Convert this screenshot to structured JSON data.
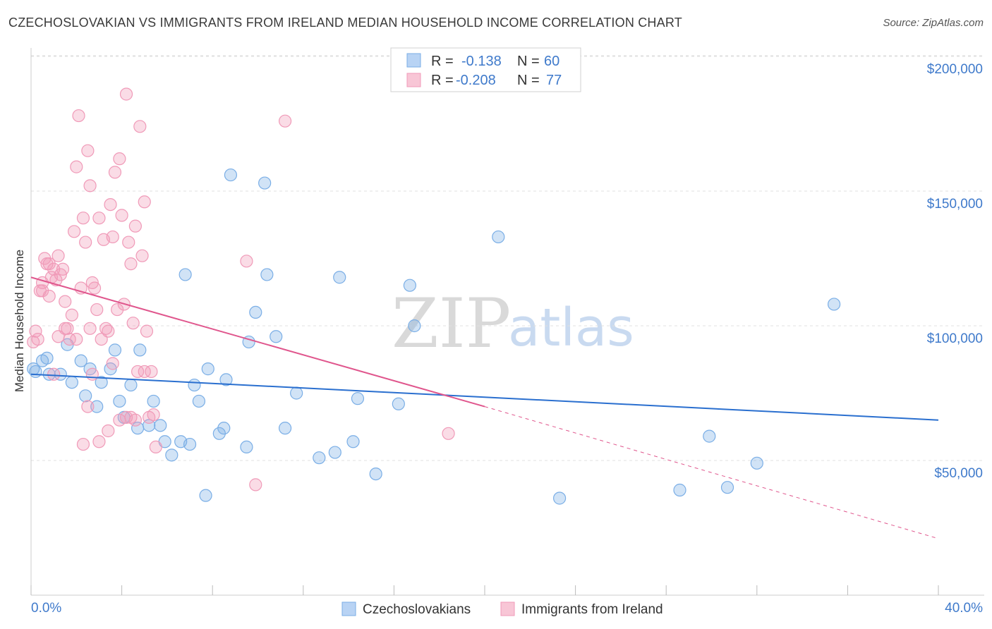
{
  "chart_data": {
    "type": "scatter",
    "title": "CZECHOSLOVAKIAN VS IMMIGRANTS FROM IRELAND MEDIAN HOUSEHOLD INCOME CORRELATION CHART",
    "source": "Source: ZipAtlas.com",
    "ylabel": "Median Household Income",
    "xlim": [
      0,
      40
    ],
    "ylim": [
      0,
      210000
    ],
    "x_tick_labels": [
      "0.0%",
      "40.0%"
    ],
    "y_ticks": [
      {
        "value": 50000,
        "label": "$50,000"
      },
      {
        "value": 100000,
        "label": "$100,000"
      },
      {
        "value": 150000,
        "label": "$150,000"
      },
      {
        "value": 200000,
        "label": "$200,000"
      }
    ],
    "watermark": {
      "zip": "ZIP",
      "atlas": "atlas"
    },
    "legend": {
      "r_label": "R =",
      "n_label": "N =",
      "rows": [
        {
          "r": "-0.138",
          "n": "60"
        },
        {
          "r": "-0.208",
          "n": "77"
        }
      ]
    },
    "series": [
      {
        "name": "Czechoslovakians",
        "color": "#7aaee6",
        "line_color": "#2a6fcf",
        "trend": {
          "x0": 0,
          "y0": 82000,
          "x1": 40,
          "y1": 65000
        },
        "points": [
          [
            0.2,
            83000
          ],
          [
            0.5,
            87000
          ],
          [
            0.7,
            88000
          ],
          [
            0.8,
            82000
          ],
          [
            1.3,
            82000
          ],
          [
            1.6,
            93000
          ],
          [
            1.8,
            79000
          ],
          [
            2.2,
            87000
          ],
          [
            2.4,
            74000
          ],
          [
            2.6,
            84000
          ],
          [
            2.9,
            70000
          ],
          [
            3.1,
            79000
          ],
          [
            3.5,
            84000
          ],
          [
            3.7,
            91000
          ],
          [
            3.9,
            72000
          ],
          [
            4.1,
            66000
          ],
          [
            4.4,
            78000
          ],
          [
            4.7,
            62000
          ],
          [
            4.8,
            91000
          ],
          [
            5.2,
            63000
          ],
          [
            5.4,
            72000
          ],
          [
            5.7,
            63000
          ],
          [
            5.9,
            57000
          ],
          [
            6.2,
            52000
          ],
          [
            6.6,
            57000
          ],
          [
            6.8,
            119000
          ],
          [
            7.0,
            56000
          ],
          [
            7.2,
            78000
          ],
          [
            7.4,
            72000
          ],
          [
            7.7,
            37000
          ],
          [
            7.8,
            84000
          ],
          [
            8.3,
            60000
          ],
          [
            8.5,
            62000
          ],
          [
            8.6,
            80000
          ],
          [
            8.8,
            156000
          ],
          [
            9.5,
            55000
          ],
          [
            9.6,
            94000
          ],
          [
            9.9,
            105000
          ],
          [
            10.3,
            153000
          ],
          [
            10.4,
            119000
          ],
          [
            10.8,
            96000
          ],
          [
            11.2,
            62000
          ],
          [
            11.7,
            75000
          ],
          [
            12.7,
            51000
          ],
          [
            13.4,
            53000
          ],
          [
            13.6,
            118000
          ],
          [
            14.2,
            57000
          ],
          [
            14.4,
            73000
          ],
          [
            15.2,
            45000
          ],
          [
            16.2,
            71000
          ],
          [
            16.7,
            115000
          ],
          [
            16.9,
            100000
          ],
          [
            20.6,
            133000
          ],
          [
            23.3,
            36000
          ],
          [
            28.6,
            39000
          ],
          [
            29.9,
            59000
          ],
          [
            30.7,
            40000
          ],
          [
            32.0,
            49000
          ],
          [
            35.4,
            108000
          ],
          [
            0.1,
            84000
          ]
        ]
      },
      {
        "name": "Immigrants from Ireland",
        "color": "#f09ab8",
        "line_color": "#e0568d",
        "trend": {
          "x0": 0,
          "y0": 118000,
          "x1": 20,
          "y1": 70000
        },
        "trend_dashed": {
          "x0": 20,
          "y0": 70000,
          "x1": 40,
          "y1": 21000
        },
        "points": [
          [
            0.2,
            98000
          ],
          [
            0.3,
            95000
          ],
          [
            0.4,
            113000
          ],
          [
            0.5,
            116000
          ],
          [
            0.6,
            125000
          ],
          [
            0.7,
            123000
          ],
          [
            0.8,
            111000
          ],
          [
            0.9,
            118000
          ],
          [
            1.0,
            121000
          ],
          [
            1.1,
            117000
          ],
          [
            1.2,
            126000
          ],
          [
            1.3,
            119000
          ],
          [
            1.4,
            121000
          ],
          [
            1.5,
            109000
          ],
          [
            1.6,
            99000
          ],
          [
            1.7,
            95000
          ],
          [
            1.8,
            104000
          ],
          [
            1.9,
            135000
          ],
          [
            2.0,
            159000
          ],
          [
            2.1,
            178000
          ],
          [
            2.2,
            114000
          ],
          [
            2.3,
            140000
          ],
          [
            2.4,
            131000
          ],
          [
            2.5,
            165000
          ],
          [
            2.6,
            152000
          ],
          [
            2.7,
            116000
          ],
          [
            2.8,
            114000
          ],
          [
            2.9,
            106000
          ],
          [
            3.0,
            140000
          ],
          [
            3.1,
            95000
          ],
          [
            3.2,
            132000
          ],
          [
            3.3,
            99000
          ],
          [
            3.4,
            98000
          ],
          [
            3.5,
            145000
          ],
          [
            3.6,
            133000
          ],
          [
            3.7,
            157000
          ],
          [
            3.8,
            106000
          ],
          [
            3.9,
            162000
          ],
          [
            4.0,
            141000
          ],
          [
            4.1,
            108000
          ],
          [
            4.2,
            186000
          ],
          [
            4.3,
            131000
          ],
          [
            4.4,
            123000
          ],
          [
            4.5,
            101000
          ],
          [
            4.6,
            137000
          ],
          [
            4.7,
            83000
          ],
          [
            4.8,
            174000
          ],
          [
            4.9,
            126000
          ],
          [
            5.0,
            146000
          ],
          [
            5.1,
            98000
          ],
          [
            5.2,
            66000
          ],
          [
            5.3,
            83000
          ],
          [
            5.4,
            67000
          ],
          [
            5.5,
            55000
          ],
          [
            1.0,
            82000
          ],
          [
            1.2,
            96000
          ],
          [
            2.0,
            95000
          ],
          [
            2.5,
            70000
          ],
          [
            2.7,
            82000
          ],
          [
            2.3,
            56000
          ],
          [
            3.0,
            57000
          ],
          [
            3.4,
            61000
          ],
          [
            3.6,
            86000
          ],
          [
            4.2,
            66000
          ],
          [
            4.6,
            65000
          ],
          [
            5.0,
            83000
          ],
          [
            9.5,
            124000
          ],
          [
            11.2,
            176000
          ],
          [
            9.9,
            41000
          ],
          [
            18.4,
            60000
          ],
          [
            0.1,
            94000
          ],
          [
            0.5,
            113000
          ],
          [
            0.8,
            123000
          ],
          [
            3.9,
            65000
          ],
          [
            2.6,
            99000
          ],
          [
            1.5,
            99000
          ],
          [
            4.4,
            66000
          ]
        ]
      }
    ]
  }
}
